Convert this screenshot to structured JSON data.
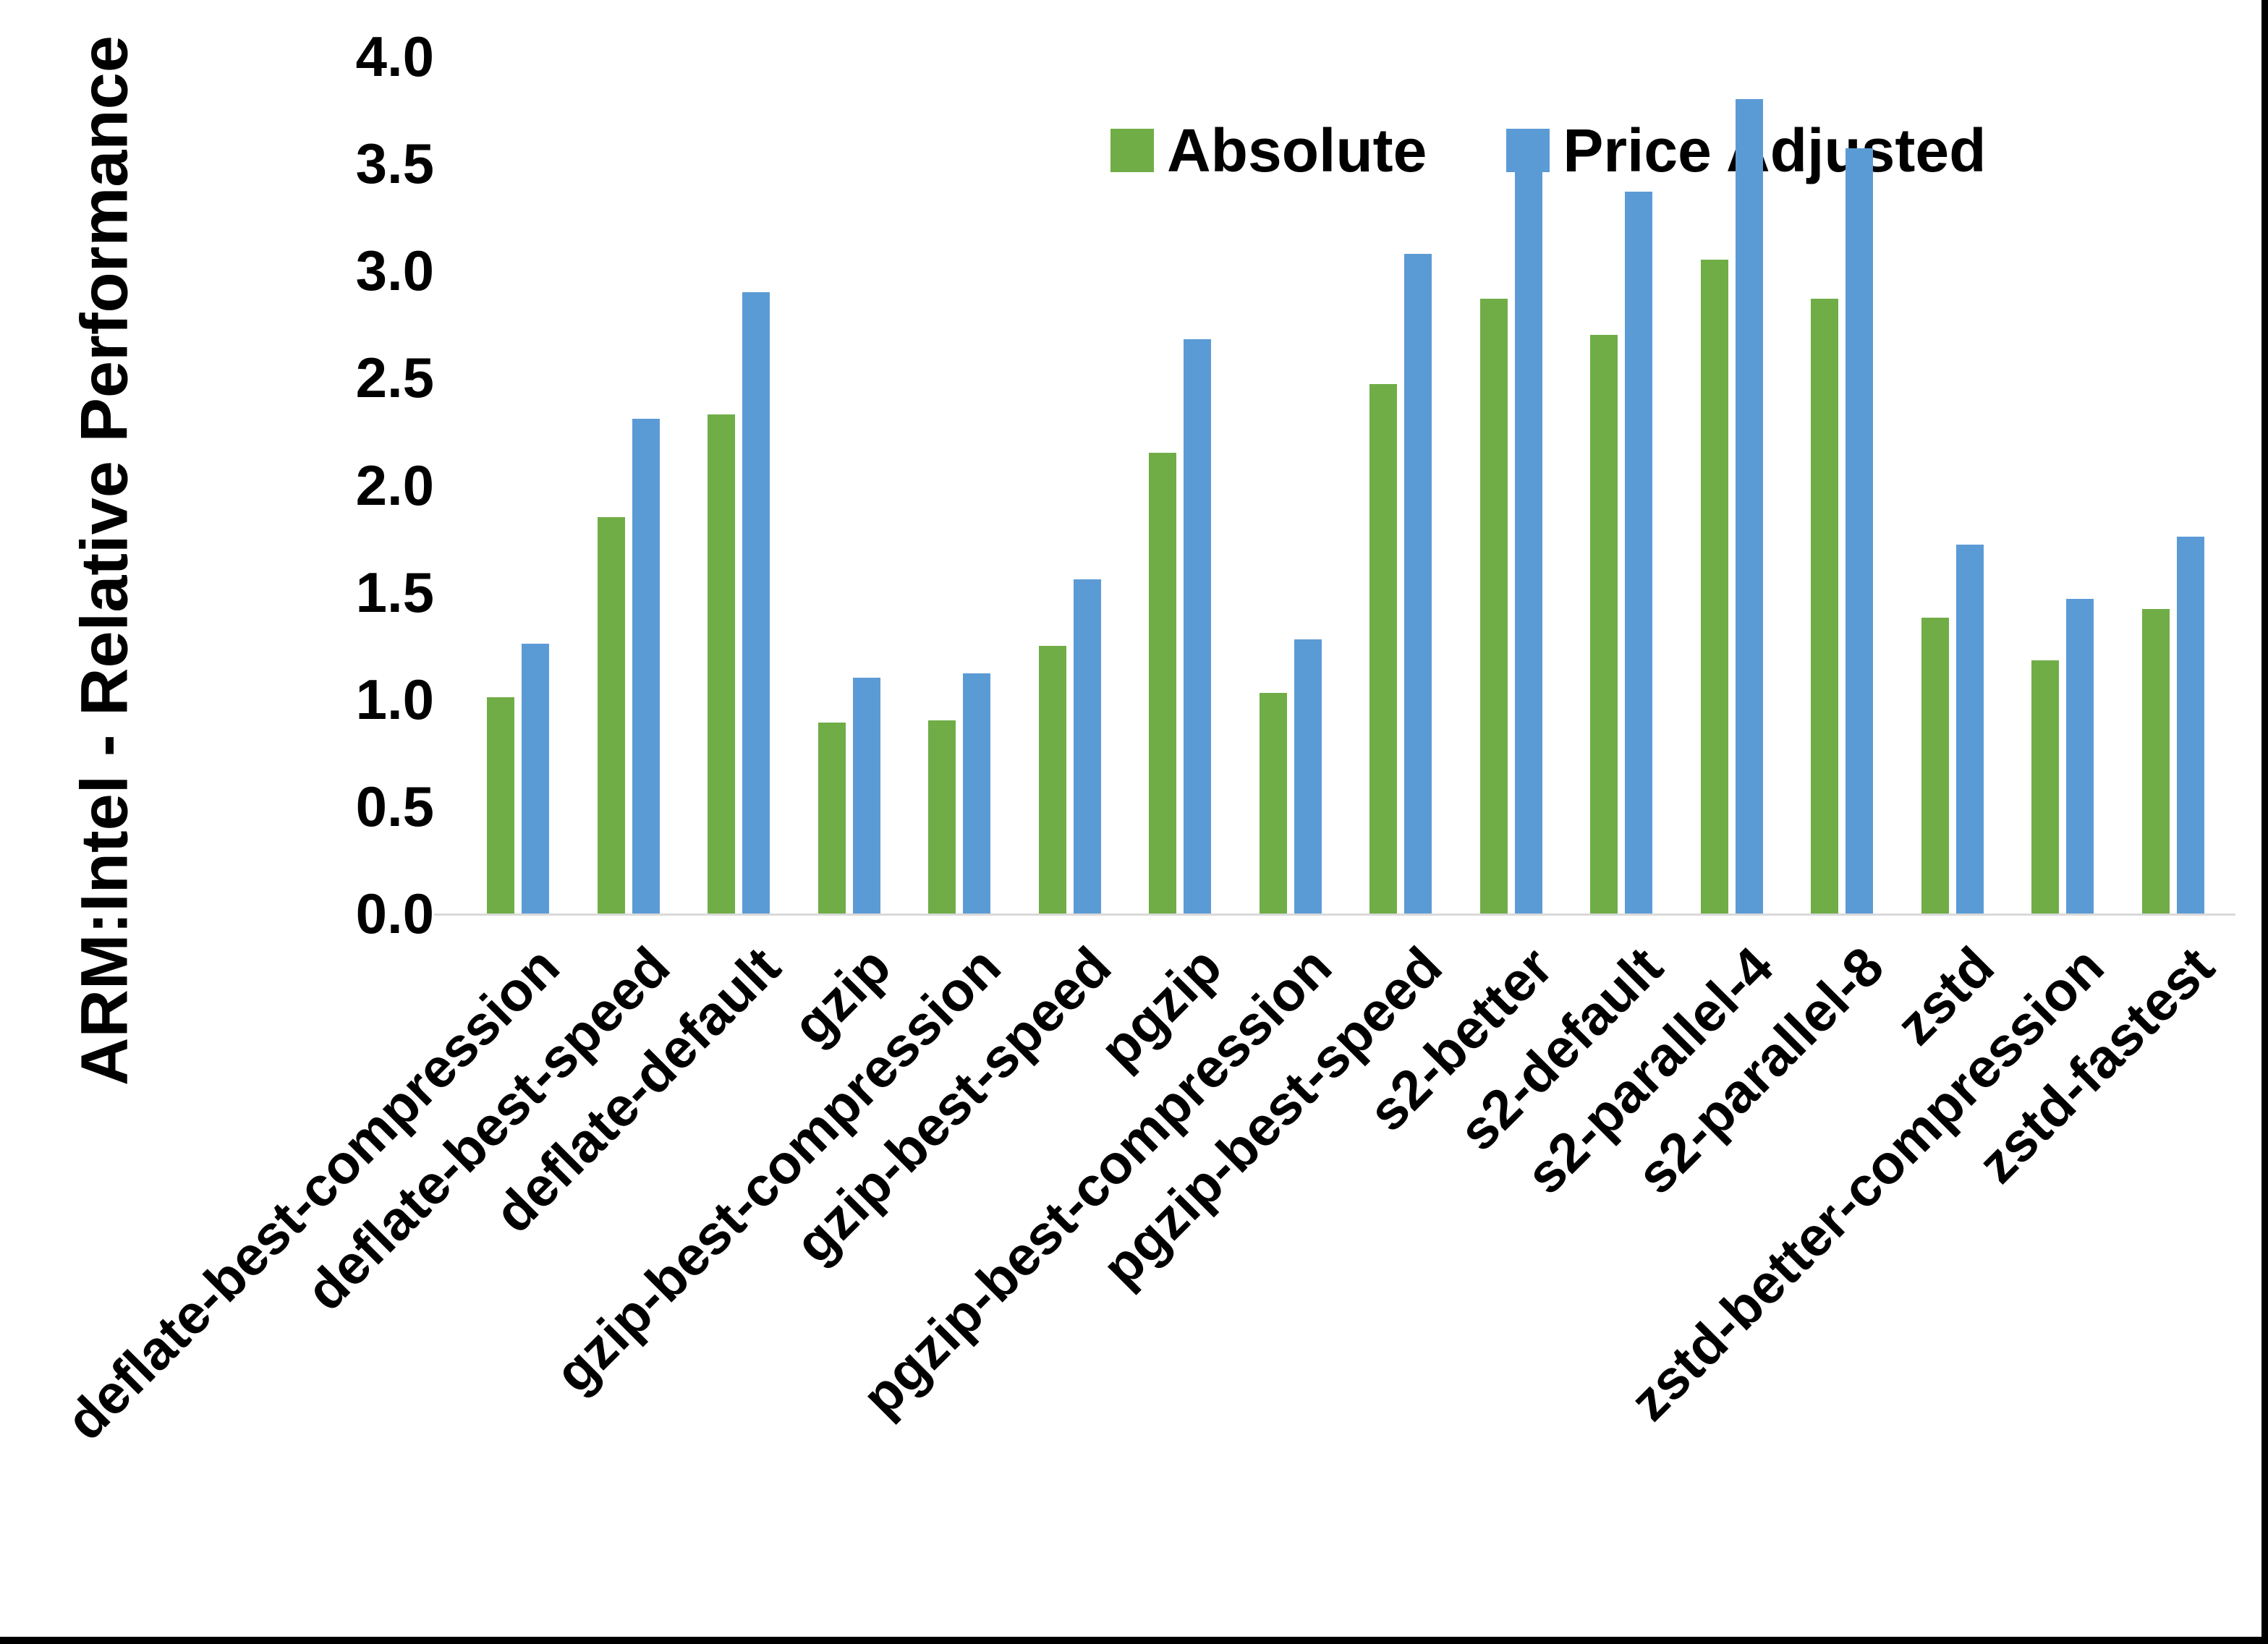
{
  "figure": {
    "background": "#ffffff",
    "border_color": "#000000",
    "axis_line_color": "#d9d9d9"
  },
  "chart_data": {
    "type": "bar",
    "title": "",
    "ylabel": "ARM:Intel - Relative Performance",
    "xlabel": "",
    "ylim": [
      0,
      4
    ],
    "ytick_step": 0.5,
    "yticks": [
      "4.0",
      "3.5",
      "3.0",
      "2.5",
      "2.0",
      "1.5",
      "1.0",
      "0.5",
      "0.0"
    ],
    "grid": false,
    "legend_position": "top-center",
    "categories": [
      "deflate-best-compression",
      "deflate-best-speed",
      "deflate-default",
      "gzip",
      "gzip-best-compression",
      "gzip-best-speed",
      "pgzip",
      "pgzip-best-compression",
      "pgzip-best-speed",
      "s2-better",
      "s2-default",
      "s2-parallel-4",
      "s2-parallel-8",
      "zstd",
      "zstd-better-compression",
      "zstd-fastest"
    ],
    "series": [
      {
        "name": "Absolute",
        "color": "#70AD47",
        "values": [
          1.01,
          1.85,
          2.33,
          0.89,
          0.9,
          1.25,
          2.15,
          1.03,
          2.47,
          2.87,
          2.7,
          3.05,
          2.87,
          1.38,
          1.18,
          1.42
        ]
      },
      {
        "name": "Price Adjusted",
        "color": "#5B9BD5",
        "values": [
          1.26,
          2.31,
          2.9,
          1.1,
          1.12,
          1.56,
          2.68,
          1.28,
          3.08,
          3.57,
          3.37,
          3.8,
          3.57,
          1.72,
          1.47,
          1.76
        ]
      }
    ]
  }
}
